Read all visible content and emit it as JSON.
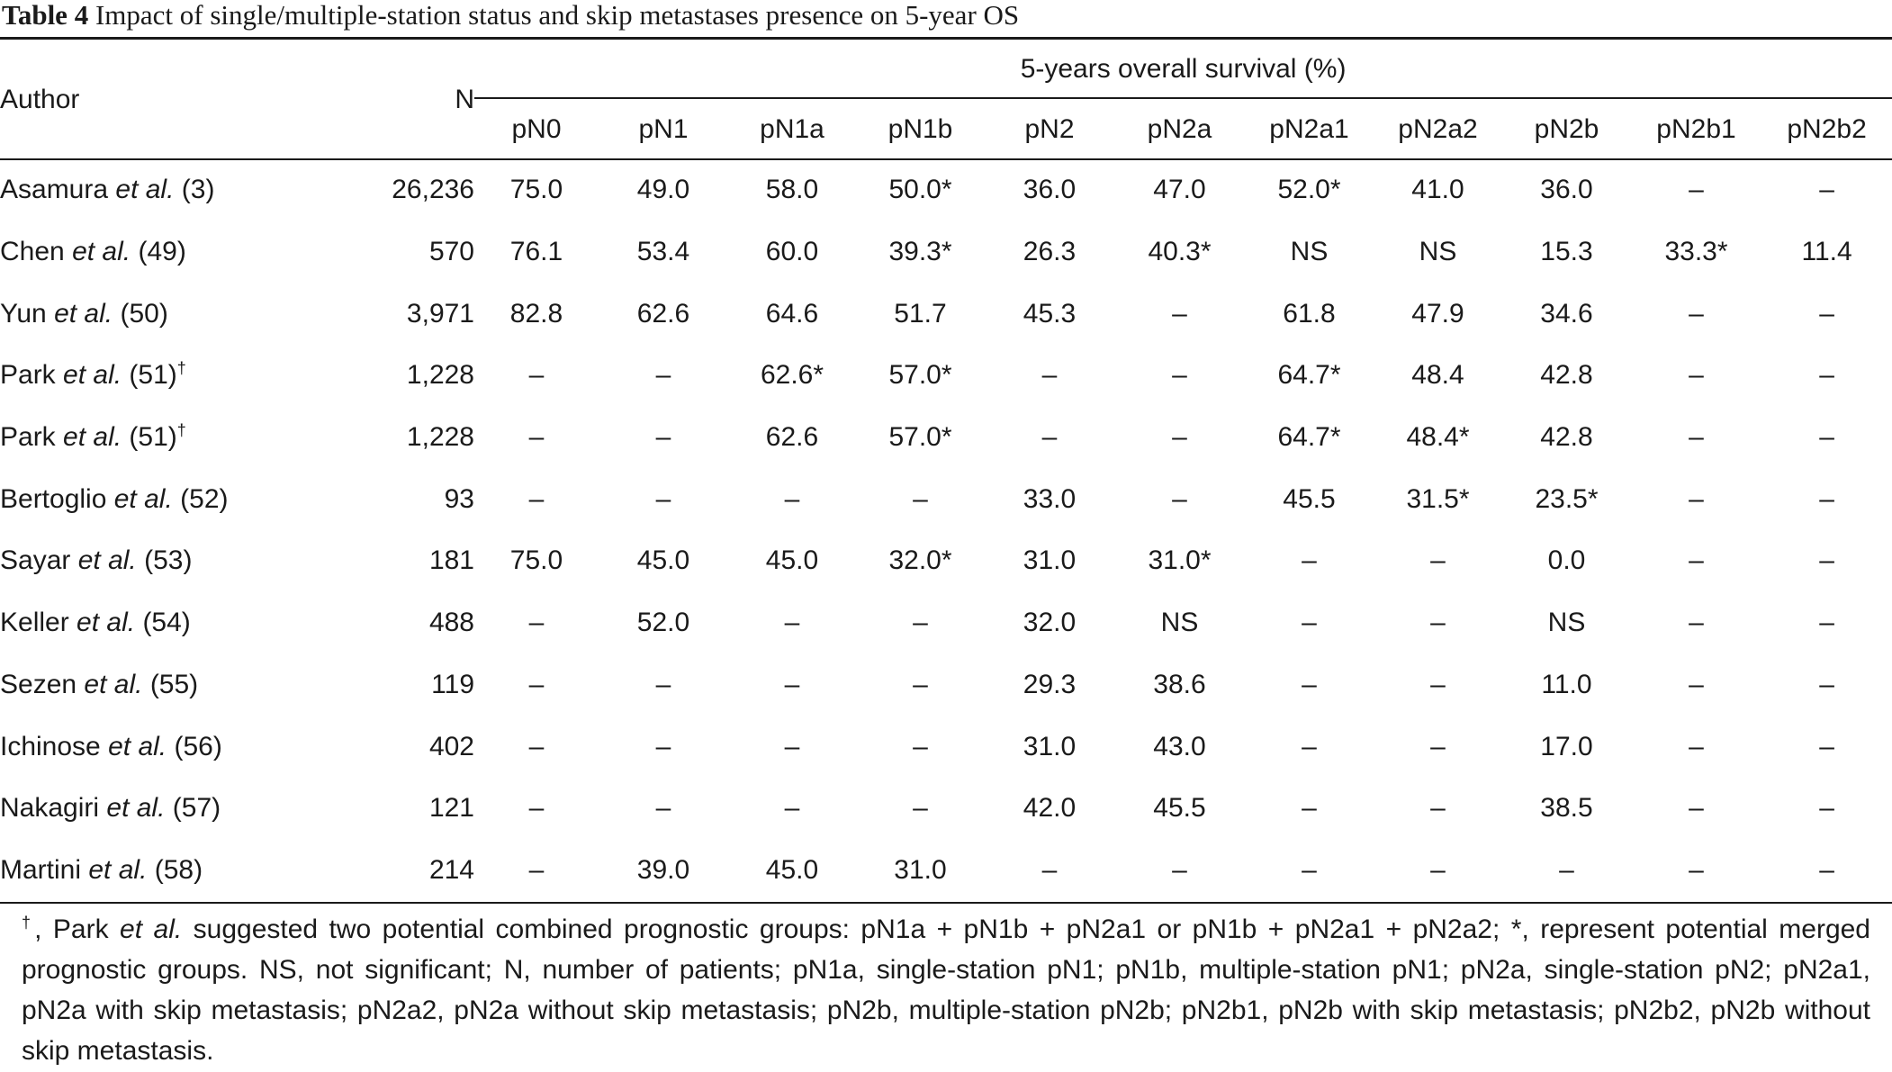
{
  "caption": {
    "label": "Table 4",
    "title": "Impact of single/multiple-station status and skip metastases presence on 5-year OS"
  },
  "headers": {
    "author": "Author",
    "n": "N",
    "group": "5-years overall survival (%)",
    "columns": [
      "pN0",
      "pN1",
      "pN1a",
      "pN1b",
      "pN2",
      "pN2a",
      "pN2a1",
      "pN2a2",
      "pN2b",
      "pN2b1",
      "pN2b2"
    ]
  },
  "rows": [
    {
      "author_name": "Asamura",
      "etal": "et al.",
      "ref": "(3)",
      "sup": "",
      "n": "26,236",
      "values": [
        "75.0",
        "49.0",
        "58.0",
        "50.0*",
        "36.0",
        "47.0",
        "52.0*",
        "41.0",
        "36.0",
        "–",
        "–"
      ]
    },
    {
      "author_name": "Chen",
      "etal": "et al.",
      "ref": "(49)",
      "sup": "",
      "n": "570",
      "values": [
        "76.1",
        "53.4",
        "60.0",
        "39.3*",
        "26.3",
        "40.3*",
        "NS",
        "NS",
        "15.3",
        "33.3*",
        "11.4"
      ]
    },
    {
      "author_name": "Yun",
      "etal": "et al.",
      "ref": "(50)",
      "sup": "",
      "n": "3,971",
      "values": [
        "82.8",
        "62.6",
        "64.6",
        "51.7",
        "45.3",
        "–",
        "61.8",
        "47.9",
        "34.6",
        "–",
        "–"
      ]
    },
    {
      "author_name": "Park",
      "etal": "et al.",
      "ref": "(51)",
      "sup": "†",
      "n": "1,228",
      "values": [
        "–",
        "–",
        "62.6*",
        "57.0*",
        "–",
        "–",
        "64.7*",
        "48.4",
        "42.8",
        "–",
        "–"
      ]
    },
    {
      "author_name": "Park",
      "etal": "et al.",
      "ref": "(51)",
      "sup": "†",
      "n": "1,228",
      "values": [
        "–",
        "–",
        "62.6",
        "57.0*",
        "–",
        "–",
        "64.7*",
        "48.4*",
        "42.8",
        "–",
        "–"
      ]
    },
    {
      "author_name": "Bertoglio",
      "etal": "et al.",
      "ref": "(52)",
      "sup": "",
      "n": "93",
      "values": [
        "–",
        "–",
        "–",
        "–",
        "33.0",
        "–",
        "45.5",
        "31.5*",
        "23.5*",
        "–",
        "–"
      ]
    },
    {
      "author_name": "Sayar",
      "etal": "et al.",
      "ref": "(53)",
      "sup": "",
      "n": "181",
      "values": [
        "75.0",
        "45.0",
        "45.0",
        "32.0*",
        "31.0",
        "31.0*",
        "–",
        "–",
        "0.0",
        "–",
        "–"
      ]
    },
    {
      "author_name": "Keller",
      "etal": "et al.",
      "ref": "(54)",
      "sup": "",
      "n": "488",
      "values": [
        "–",
        "52.0",
        "–",
        "–",
        "32.0",
        "NS",
        "–",
        "–",
        "NS",
        "–",
        "–"
      ]
    },
    {
      "author_name": "Sezen",
      "etal": "et al.",
      "ref": "(55)",
      "sup": "",
      "n": "119",
      "values": [
        "–",
        "–",
        "–",
        "–",
        "29.3",
        "38.6",
        "–",
        "–",
        "11.0",
        "–",
        "–"
      ]
    },
    {
      "author_name": "Ichinose",
      "etal": "et al.",
      "ref": "(56)",
      "sup": "",
      "n": "402",
      "values": [
        "–",
        "–",
        "–",
        "–",
        "31.0",
        "43.0",
        "–",
        "–",
        "17.0",
        "–",
        "–"
      ]
    },
    {
      "author_name": "Nakagiri",
      "etal": "et al.",
      "ref": "(57)",
      "sup": "",
      "n": "121",
      "values": [
        "–",
        "–",
        "–",
        "–",
        "42.0",
        "45.5",
        "–",
        "–",
        "38.5",
        "–",
        "–"
      ]
    },
    {
      "author_name": "Martini",
      "etal": "et al.",
      "ref": "(58)",
      "sup": "",
      "n": "214",
      "values": [
        "–",
        "39.0",
        "45.0",
        "31.0",
        "–",
        "–",
        "–",
        "–",
        "–",
        "–",
        "–"
      ]
    }
  ],
  "footnote": {
    "dagger": "†",
    "text_before": ", Park ",
    "etal": "et al.",
    "text_after": " suggested two potential combined prognostic groups: pN1a + pN1b + pN2a1 or pN1b + pN2a1 + pN2a2; *, represent potential merged prognostic groups. NS, not significant; N, number of patients; pN1a, single-station pN1; pN1b, multiple-station pN1; pN2a, single-station pN2; pN2a1, pN2a with skip metastasis; pN2a2, pN2a without skip metastasis; pN2b, multiple-station pN2b; pN2b1, pN2b with skip metastasis; pN2b2, pN2b without skip metastasis."
  }
}
